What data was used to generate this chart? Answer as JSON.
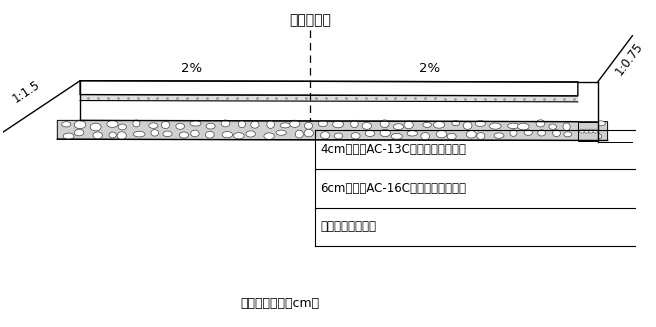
{
  "title": "路面中心线",
  "note": "注：图中单位以cm计",
  "label_2pct_left": "2%",
  "label_2pct_right": "2%",
  "label_slope_left": "1:1.5",
  "label_slope_right": "1:0.75",
  "layer1": "4cm细粒式AC-13C沥青混凝土上面层",
  "layer2": "6cm中粒式AC-16C沥青混凝土下面层",
  "layer3": "原水泥混凝土路面",
  "bg_color": "#ffffff",
  "line_color": "#000000"
}
